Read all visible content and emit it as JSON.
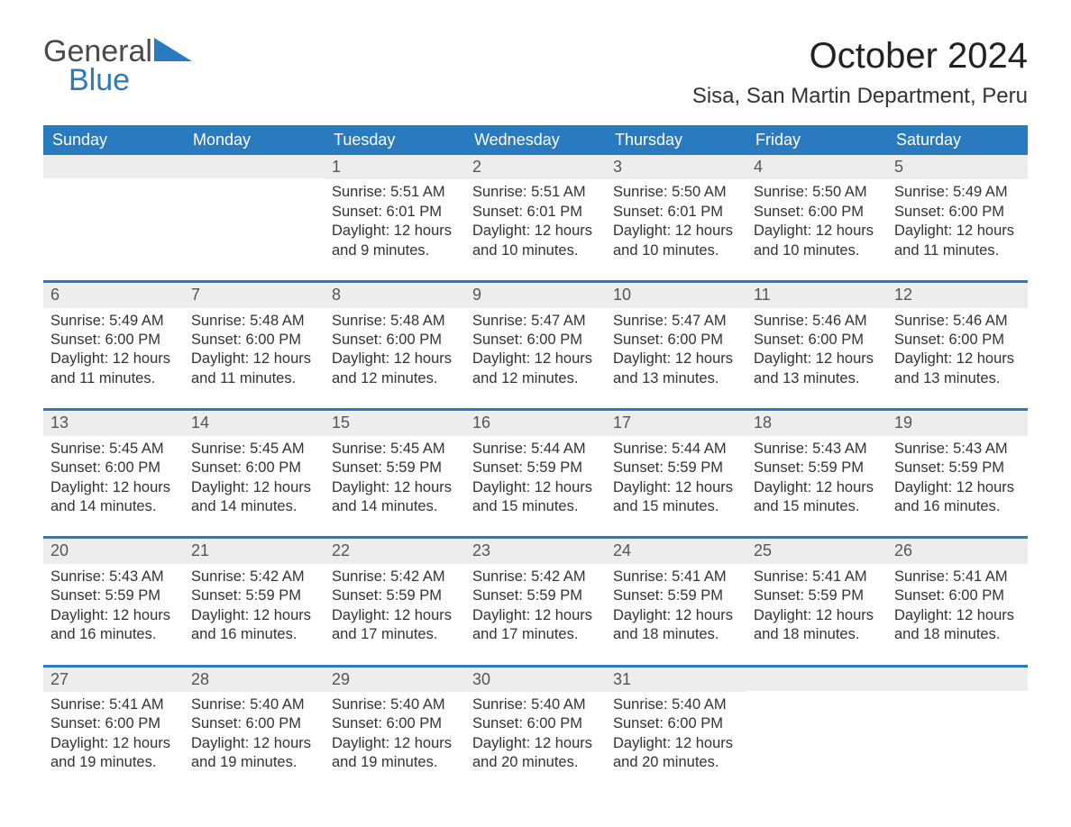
{
  "logo": {
    "text_general": "General",
    "text_blue": "Blue",
    "accent_color": "#2a7ac0"
  },
  "header": {
    "month_title": "October 2024",
    "location": "Sisa, San Martin Department, Peru"
  },
  "calendar": {
    "header_bg": "#2a7ac0",
    "header_fg": "#ffffff",
    "row_border_color": "#2a7ac0",
    "daynum_bg": "#ededed",
    "weekdays": [
      "Sunday",
      "Monday",
      "Tuesday",
      "Wednesday",
      "Thursday",
      "Friday",
      "Saturday"
    ],
    "weeks": [
      [
        {
          "day": "",
          "sunrise": "",
          "sunset": "",
          "daylight": ""
        },
        {
          "day": "",
          "sunrise": "",
          "sunset": "",
          "daylight": ""
        },
        {
          "day": "1",
          "sunrise": "Sunrise: 5:51 AM",
          "sunset": "Sunset: 6:01 PM",
          "daylight": "Daylight: 12 hours and 9 minutes."
        },
        {
          "day": "2",
          "sunrise": "Sunrise: 5:51 AM",
          "sunset": "Sunset: 6:01 PM",
          "daylight": "Daylight: 12 hours and 10 minutes."
        },
        {
          "day": "3",
          "sunrise": "Sunrise: 5:50 AM",
          "sunset": "Sunset: 6:01 PM",
          "daylight": "Daylight: 12 hours and 10 minutes."
        },
        {
          "day": "4",
          "sunrise": "Sunrise: 5:50 AM",
          "sunset": "Sunset: 6:00 PM",
          "daylight": "Daylight: 12 hours and 10 minutes."
        },
        {
          "day": "5",
          "sunrise": "Sunrise: 5:49 AM",
          "sunset": "Sunset: 6:00 PM",
          "daylight": "Daylight: 12 hours and 11 minutes."
        }
      ],
      [
        {
          "day": "6",
          "sunrise": "Sunrise: 5:49 AM",
          "sunset": "Sunset: 6:00 PM",
          "daylight": "Daylight: 12 hours and 11 minutes."
        },
        {
          "day": "7",
          "sunrise": "Sunrise: 5:48 AM",
          "sunset": "Sunset: 6:00 PM",
          "daylight": "Daylight: 12 hours and 11 minutes."
        },
        {
          "day": "8",
          "sunrise": "Sunrise: 5:48 AM",
          "sunset": "Sunset: 6:00 PM",
          "daylight": "Daylight: 12 hours and 12 minutes."
        },
        {
          "day": "9",
          "sunrise": "Sunrise: 5:47 AM",
          "sunset": "Sunset: 6:00 PM",
          "daylight": "Daylight: 12 hours and 12 minutes."
        },
        {
          "day": "10",
          "sunrise": "Sunrise: 5:47 AM",
          "sunset": "Sunset: 6:00 PM",
          "daylight": "Daylight: 12 hours and 13 minutes."
        },
        {
          "day": "11",
          "sunrise": "Sunrise: 5:46 AM",
          "sunset": "Sunset: 6:00 PM",
          "daylight": "Daylight: 12 hours and 13 minutes."
        },
        {
          "day": "12",
          "sunrise": "Sunrise: 5:46 AM",
          "sunset": "Sunset: 6:00 PM",
          "daylight": "Daylight: 12 hours and 13 minutes."
        }
      ],
      [
        {
          "day": "13",
          "sunrise": "Sunrise: 5:45 AM",
          "sunset": "Sunset: 6:00 PM",
          "daylight": "Daylight: 12 hours and 14 minutes."
        },
        {
          "day": "14",
          "sunrise": "Sunrise: 5:45 AM",
          "sunset": "Sunset: 6:00 PM",
          "daylight": "Daylight: 12 hours and 14 minutes."
        },
        {
          "day": "15",
          "sunrise": "Sunrise: 5:45 AM",
          "sunset": "Sunset: 5:59 PM",
          "daylight": "Daylight: 12 hours and 14 minutes."
        },
        {
          "day": "16",
          "sunrise": "Sunrise: 5:44 AM",
          "sunset": "Sunset: 5:59 PM",
          "daylight": "Daylight: 12 hours and 15 minutes."
        },
        {
          "day": "17",
          "sunrise": "Sunrise: 5:44 AM",
          "sunset": "Sunset: 5:59 PM",
          "daylight": "Daylight: 12 hours and 15 minutes."
        },
        {
          "day": "18",
          "sunrise": "Sunrise: 5:43 AM",
          "sunset": "Sunset: 5:59 PM",
          "daylight": "Daylight: 12 hours and 15 minutes."
        },
        {
          "day": "19",
          "sunrise": "Sunrise: 5:43 AM",
          "sunset": "Sunset: 5:59 PM",
          "daylight": "Daylight: 12 hours and 16 minutes."
        }
      ],
      [
        {
          "day": "20",
          "sunrise": "Sunrise: 5:43 AM",
          "sunset": "Sunset: 5:59 PM",
          "daylight": "Daylight: 12 hours and 16 minutes."
        },
        {
          "day": "21",
          "sunrise": "Sunrise: 5:42 AM",
          "sunset": "Sunset: 5:59 PM",
          "daylight": "Daylight: 12 hours and 16 minutes."
        },
        {
          "day": "22",
          "sunrise": "Sunrise: 5:42 AM",
          "sunset": "Sunset: 5:59 PM",
          "daylight": "Daylight: 12 hours and 17 minutes."
        },
        {
          "day": "23",
          "sunrise": "Sunrise: 5:42 AM",
          "sunset": "Sunset: 5:59 PM",
          "daylight": "Daylight: 12 hours and 17 minutes."
        },
        {
          "day": "24",
          "sunrise": "Sunrise: 5:41 AM",
          "sunset": "Sunset: 5:59 PM",
          "daylight": "Daylight: 12 hours and 18 minutes."
        },
        {
          "day": "25",
          "sunrise": "Sunrise: 5:41 AM",
          "sunset": "Sunset: 5:59 PM",
          "daylight": "Daylight: 12 hours and 18 minutes."
        },
        {
          "day": "26",
          "sunrise": "Sunrise: 5:41 AM",
          "sunset": "Sunset: 6:00 PM",
          "daylight": "Daylight: 12 hours and 18 minutes."
        }
      ],
      [
        {
          "day": "27",
          "sunrise": "Sunrise: 5:41 AM",
          "sunset": "Sunset: 6:00 PM",
          "daylight": "Daylight: 12 hours and 19 minutes."
        },
        {
          "day": "28",
          "sunrise": "Sunrise: 5:40 AM",
          "sunset": "Sunset: 6:00 PM",
          "daylight": "Daylight: 12 hours and 19 minutes."
        },
        {
          "day": "29",
          "sunrise": "Sunrise: 5:40 AM",
          "sunset": "Sunset: 6:00 PM",
          "daylight": "Daylight: 12 hours and 19 minutes."
        },
        {
          "day": "30",
          "sunrise": "Sunrise: 5:40 AM",
          "sunset": "Sunset: 6:00 PM",
          "daylight": "Daylight: 12 hours and 20 minutes."
        },
        {
          "day": "31",
          "sunrise": "Sunrise: 5:40 AM",
          "sunset": "Sunset: 6:00 PM",
          "daylight": "Daylight: 12 hours and 20 minutes."
        },
        {
          "day": "",
          "sunrise": "",
          "sunset": "",
          "daylight": ""
        },
        {
          "day": "",
          "sunrise": "",
          "sunset": "",
          "daylight": ""
        }
      ]
    ]
  }
}
